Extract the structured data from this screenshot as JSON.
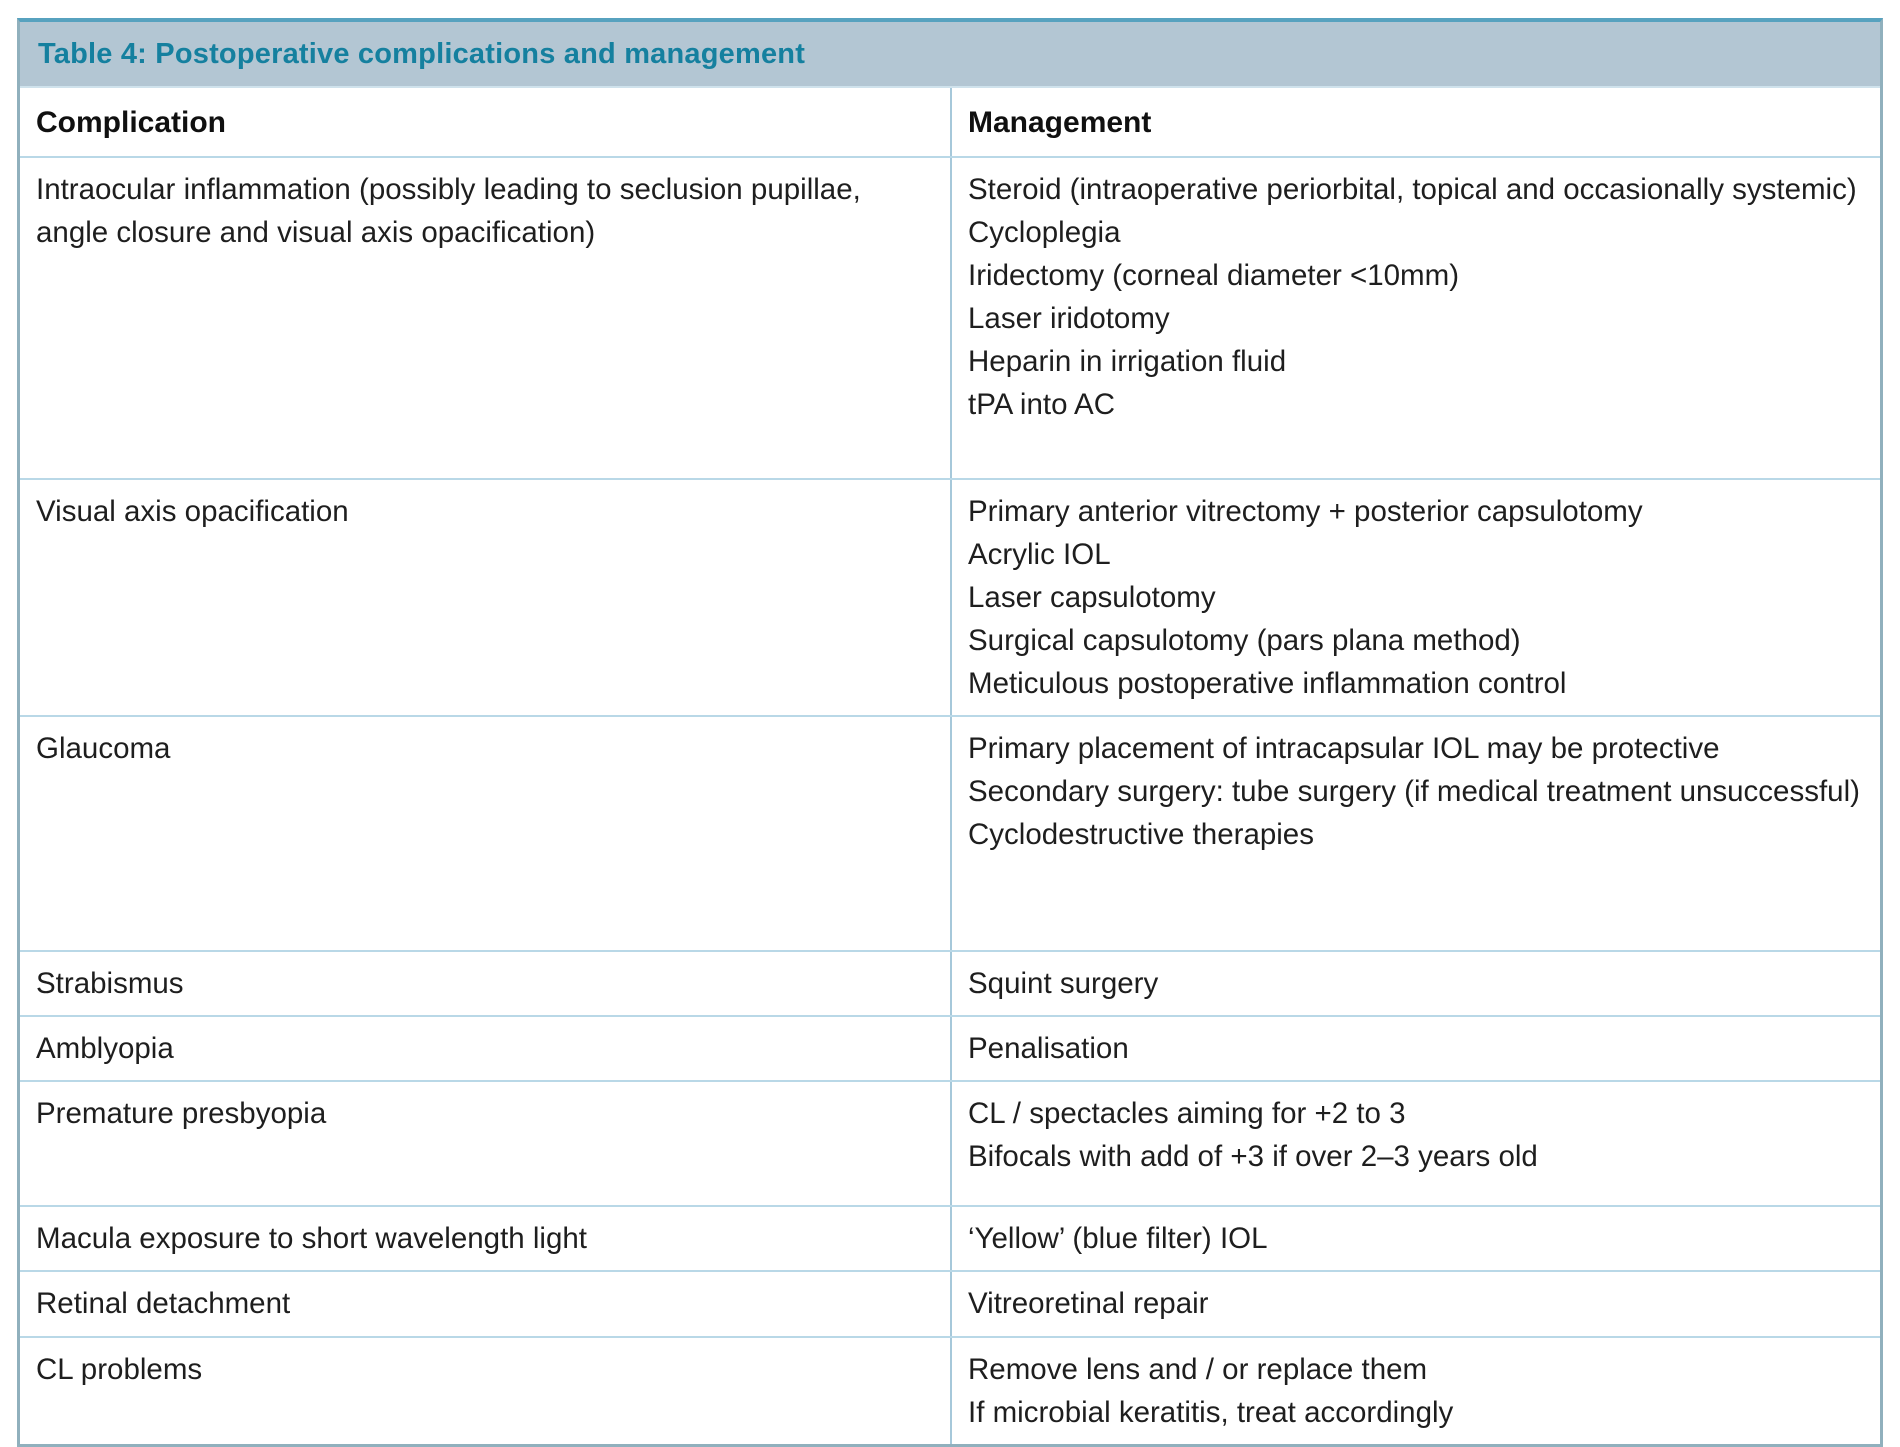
{
  "table": {
    "title": "Table 4: Postoperative complications and management",
    "columns": [
      "Complication",
      "Management"
    ],
    "rows": [
      {
        "complication": "Intraocular inflammation (possibly leading to seclusion pupillae, angle closure and visual axis opacification)",
        "management": [
          "Steroid (intraoperative periorbital, topical and occasionally systemic)",
          "Cycloplegia",
          "Iridectomy (corneal diameter <10mm)",
          "Laser iridotomy",
          "Heparin in irrigation fluid",
          "tPA into AC"
        ]
      },
      {
        "complication": "Visual axis opacification",
        "management": [
          "Primary anterior vitrectomy + posterior capsulotomy",
          "Acrylic IOL",
          "Laser capsulotomy",
          "Surgical capsulotomy (pars plana method)",
          "Meticulous postoperative inflammation control"
        ]
      },
      {
        "complication": "Glaucoma",
        "management": [
          "Primary placement of intracapsular IOL may be protective",
          "Secondary surgery: tube surgery (if medical treatment unsuccessful)",
          "Cyclodestructive therapies"
        ]
      },
      {
        "complication": "Strabismus",
        "management": [
          "Squint surgery"
        ]
      },
      {
        "complication": "Amblyopia",
        "management": [
          "Penalisation"
        ]
      },
      {
        "complication": "Premature presbyopia",
        "management": [
          "CL / spectacles aiming for +2 to 3",
          "Bifocals with add of +3 if over 2–3 years old"
        ]
      },
      {
        "complication": "Macula exposure to short wavelength light",
        "management": [
          "‘Yellow’ (blue filter) IOL"
        ]
      },
      {
        "complication": "Retinal detachment",
        "management": [
          "Vitreoretinal repair"
        ]
      },
      {
        "complication": "CL problems",
        "management": [
          "Remove lens and / or replace them",
          "If microbial keratitis, treat accordingly"
        ]
      }
    ],
    "colors": {
      "title_bar_bg": "#b3c6d3",
      "title_text": "#15809f",
      "outer_border": "#90b0bd",
      "outer_border_top": "#57a2bf",
      "inner_rule": "#b9d8e7",
      "column_divider": "#a6c8da",
      "body_text": "#1e1e1e"
    }
  }
}
